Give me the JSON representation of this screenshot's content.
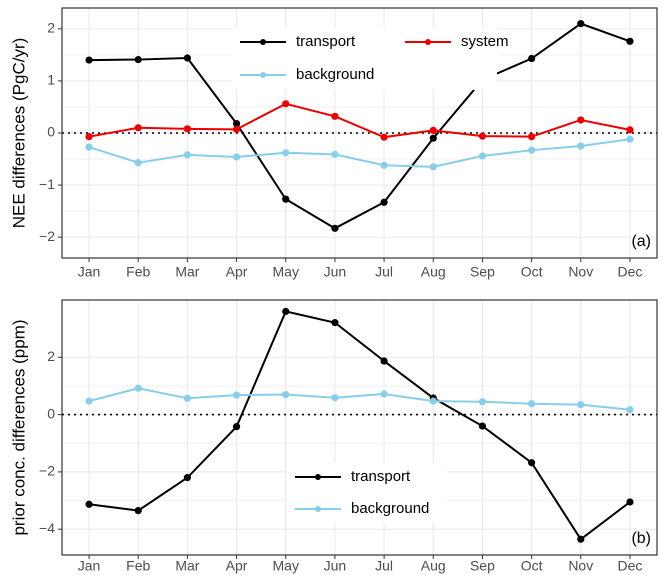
{
  "chart_data": [
    {
      "type": "line",
      "y_label": "NEE differences (PgC/yr)",
      "panel_label": "(a)",
      "categories": [
        "Jan",
        "Feb",
        "Mar",
        "Apr",
        "May",
        "Jun",
        "Jul",
        "Aug",
        "Sep",
        "Oct",
        "Nov",
        "Dec"
      ],
      "ylim": [
        -2.4,
        2.4
      ],
      "yticks": [
        {
          "value": -2,
          "label": "−2"
        },
        {
          "value": -1,
          "label": "−1"
        },
        0,
        1,
        2
      ],
      "grid": true,
      "hline": 0,
      "legend_position": "top",
      "series": [
        {
          "name": "transport",
          "color": "#000000",
          "values": [
            1.4,
            1.41,
            1.44,
            0.18,
            -1.27,
            -1.83,
            -1.33,
            -0.1,
            1.02,
            1.43,
            2.1,
            1.76
          ]
        },
        {
          "name": "system",
          "color": "#ee0000",
          "values": [
            -0.07,
            0.1,
            0.08,
            0.07,
            0.56,
            0.32,
            -0.08,
            0.05,
            -0.06,
            -0.07,
            0.25,
            0.06
          ]
        },
        {
          "name": "background",
          "color": "#87ceeb",
          "values": [
            -0.27,
            -0.57,
            -0.42,
            -0.46,
            -0.38,
            -0.41,
            -0.62,
            -0.65,
            -0.44,
            -0.33,
            -0.25,
            -0.12
          ]
        }
      ]
    },
    {
      "type": "line",
      "y_label": "prior conc. differences (ppm)",
      "panel_label": "(b)",
      "categories": [
        "Jan",
        "Feb",
        "Mar",
        "Apr",
        "May",
        "Jun",
        "Jul",
        "Aug",
        "Sep",
        "Oct",
        "Nov",
        "Dec"
      ],
      "ylim": [
        -4.9,
        4.0
      ],
      "yticks": [
        {
          "value": -4,
          "label": "−4"
        },
        {
          "value": -2,
          "label": "−2"
        },
        0,
        2
      ],
      "grid": true,
      "hline": 0,
      "legend_position": "bottom",
      "series": [
        {
          "name": "transport",
          "color": "#000000",
          "values": [
            -3.13,
            -3.35,
            -2.2,
            -0.42,
            3.6,
            3.21,
            1.87,
            0.58,
            -0.4,
            -1.68,
            -4.35,
            -3.05
          ]
        },
        {
          "name": "background",
          "color": "#87ceeb",
          "values": [
            0.47,
            0.92,
            0.57,
            0.68,
            0.7,
            0.59,
            0.72,
            0.47,
            0.45,
            0.38,
            0.35,
            0.17
          ]
        }
      ]
    }
  ]
}
